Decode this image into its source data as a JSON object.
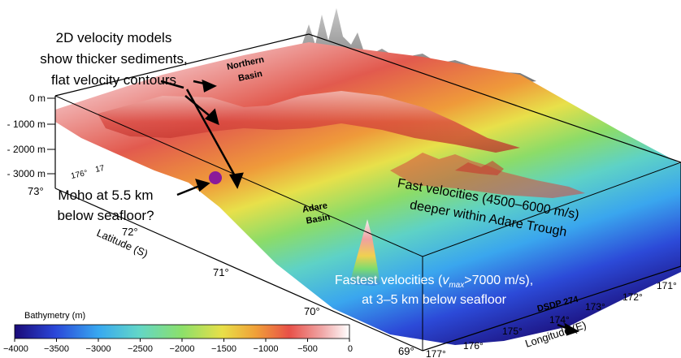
{
  "annotations": {
    "velocity_models": [
      "2D velocity models",
      "show thicker sediments,",
      "flat velocity contours"
    ],
    "northern_basin": [
      "Northern",
      "Basin"
    ],
    "moho": [
      "Moho at 5.5 km",
      "below seafloor?"
    ],
    "adare_basin": [
      "Adare",
      "Basin"
    ],
    "fast_velocities": [
      "Fast velocities (4500–6000 m/s)",
      "deeper within Adare Trough"
    ],
    "fastest_velocities": {
      "line1_prefix": "Fastest velocities (",
      "v": "v",
      "sub": "max",
      "line1_suffix": ">7000 m/s),",
      "line2": "at 3–5 km below seafloor"
    },
    "dsdp": "DSDP 274"
  },
  "depth_axis": {
    "ticks": [
      "0 m",
      "- 1000 m",
      "- 2000 m",
      "- 3000 m"
    ],
    "corner_labels": [
      "176°",
      "17"
    ]
  },
  "latitude_axis": {
    "title": "Latitude (S)",
    "ticks": [
      "73°",
      "72°",
      "71°",
      "70°",
      "69°"
    ]
  },
  "longitude_axis": {
    "title": "Longitude (E)",
    "ticks": [
      "177°",
      "176°",
      "175°",
      "174°",
      "173°",
      "172°",
      "171°"
    ]
  },
  "colorbar": {
    "title": "Bathymetry (m)",
    "ticks": [
      "−4000",
      "−3500",
      "−3000",
      "−2500",
      "−2000",
      "−1500",
      "−1000",
      "−500",
      "0"
    ],
    "colors": [
      "#1a0a78",
      "#2a46d8",
      "#38a8f0",
      "#62d6c8",
      "#8ce06a",
      "#e8e048",
      "#f0a038",
      "#e85048",
      "#f0a8a8",
      "#ffffff"
    ]
  }
}
